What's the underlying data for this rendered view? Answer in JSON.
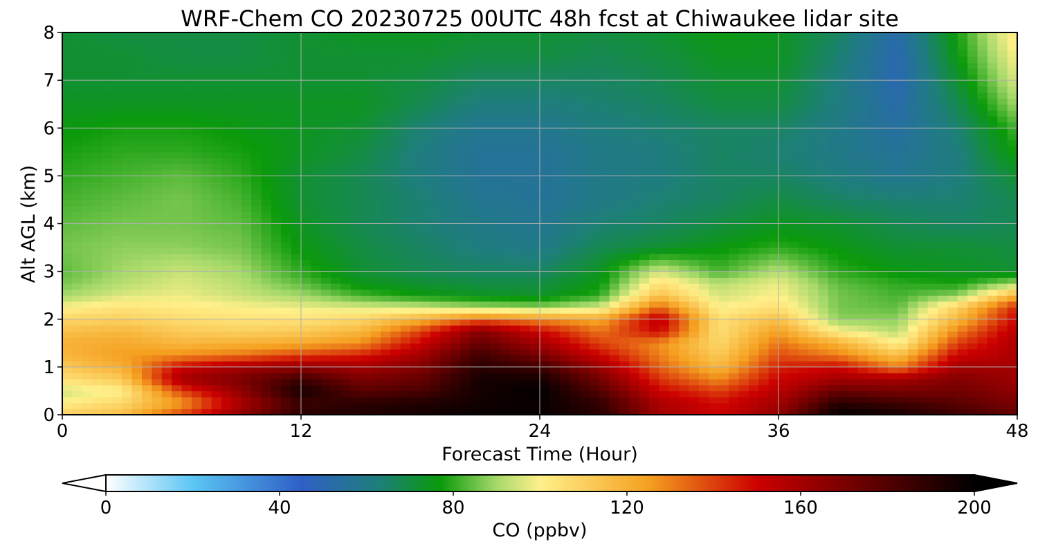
{
  "chart_data": {
    "type": "heatmap",
    "title": "WRF-Chem CO  20230725 00UTC 48h fcst at Chiwaukee lidar site",
    "xlabel": "Forecast Time (Hour)",
    "ylabel": "Alt AGL (km)",
    "xlim": [
      0,
      48
    ],
    "ylim": [
      0,
      8
    ],
    "x_ticks": [
      0,
      12,
      24,
      36,
      48
    ],
    "y_ticks": [
      0,
      1,
      2,
      3,
      4,
      5,
      6,
      7,
      8
    ],
    "grid": true,
    "x": [
      0,
      3,
      6,
      9,
      12,
      15,
      18,
      21,
      24,
      27,
      30,
      33,
      36,
      39,
      42,
      45,
      48
    ],
    "y": [
      0,
      0.25,
      0.5,
      0.75,
      1,
      1.25,
      1.5,
      1.75,
      2,
      2.25,
      2.5,
      2.75,
      3,
      3.5,
      4,
      4.5,
      5,
      5.5,
      6,
      6.5,
      7,
      7.5,
      8
    ],
    "z": [
      [
        110,
        115,
        140,
        165,
        190,
        192,
        195,
        198,
        198,
        190,
        160,
        150,
        165,
        200,
        195,
        185,
        175
      ],
      [
        100,
        108,
        125,
        158,
        185,
        190,
        192,
        196,
        198,
        188,
        158,
        148,
        160,
        190,
        185,
        178,
        170
      ],
      [
        95,
        100,
        140,
        165,
        195,
        178,
        182,
        195,
        200,
        180,
        150,
        140,
        155,
        175,
        170,
        172,
        165
      ],
      [
        105,
        112,
        160,
        170,
        185,
        170,
        175,
        195,
        195,
        172,
        142,
        128,
        150,
        160,
        160,
        168,
        162
      ],
      [
        112,
        120,
        150,
        160,
        165,
        160,
        168,
        190,
        185,
        162,
        135,
        118,
        145,
        150,
        130,
        160,
        160
      ],
      [
        118,
        125,
        128,
        132,
        140,
        145,
        160,
        185,
        170,
        150,
        130,
        112,
        138,
        130,
        115,
        150,
        158
      ],
      [
        120,
        122,
        118,
        120,
        122,
        128,
        150,
        175,
        160,
        140,
        128,
        108,
        132,
        120,
        100,
        140,
        158
      ],
      [
        115,
        118,
        112,
        110,
        112,
        118,
        140,
        168,
        150,
        132,
        150,
        105,
        125,
        100,
        92,
        130,
        155
      ],
      [
        108,
        110,
        106,
        104,
        104,
        108,
        120,
        135,
        128,
        122,
        155,
        105,
        115,
        88,
        88,
        118,
        150
      ],
      [
        100,
        104,
        102,
        100,
        98,
        96,
        94,
        90,
        88,
        95,
        135,
        100,
        105,
        86,
        84,
        110,
        145
      ],
      [
        90,
        96,
        98,
        94,
        90,
        82,
        77,
        74,
        73,
        80,
        115,
        95,
        100,
        86,
        82,
        88,
        120
      ],
      [
        86,
        92,
        96,
        92,
        84,
        75,
        72,
        70,
        70,
        76,
        105,
        92,
        98,
        84,
        80,
        78,
        90
      ],
      [
        84,
        90,
        94,
        90,
        80,
        72,
        68,
        66,
        66,
        74,
        95,
        82,
        92,
        80,
        76,
        74,
        72
      ],
      [
        86,
        88,
        88,
        86,
        76,
        70,
        66,
        62,
        60,
        68,
        72,
        76,
        80,
        76,
        72,
        72,
        70
      ],
      [
        84,
        86,
        86,
        84,
        74,
        68,
        64,
        60,
        58,
        64,
        66,
        70,
        74,
        72,
        68,
        66,
        68
      ],
      [
        82,
        84,
        86,
        82,
        72,
        68,
        64,
        58,
        56,
        60,
        64,
        66,
        70,
        66,
        64,
        64,
        68
      ],
      [
        80,
        82,
        84,
        80,
        72,
        68,
        62,
        56,
        56,
        60,
        62,
        66,
        66,
        62,
        58,
        62,
        72
      ],
      [
        78,
        80,
        80,
        78,
        74,
        70,
        62,
        56,
        56,
        60,
        62,
        66,
        64,
        60,
        56,
        62,
        78
      ],
      [
        76,
        78,
        78,
        76,
        74,
        72,
        64,
        58,
        58,
        62,
        64,
        66,
        66,
        60,
        54,
        64,
        82
      ],
      [
        74,
        74,
        74,
        74,
        74,
        74,
        68,
        62,
        62,
        64,
        66,
        70,
        70,
        62,
        52,
        68,
        90
      ],
      [
        72,
        72,
        72,
        72,
        72,
        72,
        70,
        66,
        66,
        66,
        68,
        72,
        72,
        62,
        50,
        72,
        96
      ],
      [
        72,
        72,
        70,
        70,
        72,
        72,
        72,
        70,
        70,
        68,
        70,
        74,
        74,
        64,
        50,
        76,
        100
      ],
      [
        72,
        70,
        70,
        70,
        72,
        74,
        74,
        72,
        72,
        70,
        72,
        76,
        74,
        66,
        52,
        78,
        104
      ]
    ],
    "colorbar": {
      "label": "CO  (ppbv)",
      "min": 0,
      "max": 200,
      "ticks": [
        0,
        40,
        80,
        120,
        160,
        200
      ],
      "extend": "both",
      "colors": [
        "#ffffff",
        "#5bc6f4",
        "#2f5fc6",
        "#1e7f7a",
        "#0a9a0a",
        "#a6d96a",
        "#fff08a",
        "#f5a020",
        "#cc0000",
        "#000000"
      ],
      "color_positions": [
        0,
        20,
        45,
        63,
        77,
        90,
        100,
        125,
        150,
        200
      ]
    }
  }
}
